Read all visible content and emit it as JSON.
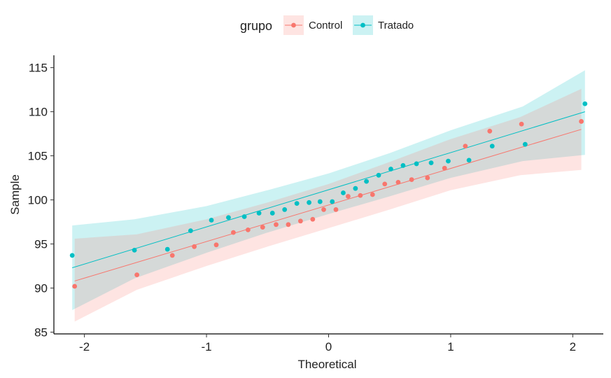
{
  "chart_data": {
    "type": "scatter",
    "subtype": "qq-plot",
    "title": "",
    "xlabel": "Theoretical",
    "ylabel": "Sample",
    "xlim": [
      -2.25,
      2.25
    ],
    "ylim": [
      84.8,
      116.4
    ],
    "xticks": [
      -2,
      -1,
      0,
      1,
      2
    ],
    "yticks": [
      85,
      90,
      95,
      100,
      105,
      110,
      115
    ],
    "grid": false,
    "legend": {
      "title": "grupo",
      "position": "top",
      "entries": [
        "Control",
        "Tratado"
      ]
    },
    "series": [
      {
        "name": "Control",
        "color": "#F8766D",
        "points": [
          [
            -2.08,
            90.2
          ],
          [
            -1.57,
            91.5
          ],
          [
            -1.28,
            93.7
          ],
          [
            -1.1,
            94.7
          ],
          [
            -0.92,
            94.9
          ],
          [
            -0.78,
            96.3
          ],
          [
            -0.66,
            96.6
          ],
          [
            -0.54,
            96.9
          ],
          [
            -0.43,
            97.2
          ],
          [
            -0.33,
            97.2
          ],
          [
            -0.23,
            97.6
          ],
          [
            -0.13,
            97.8
          ],
          [
            -0.04,
            98.9
          ],
          [
            0.06,
            98.9
          ],
          [
            0.16,
            100.4
          ],
          [
            0.26,
            100.5
          ],
          [
            0.36,
            100.6
          ],
          [
            0.46,
            101.8
          ],
          [
            0.57,
            102.0
          ],
          [
            0.68,
            102.3
          ],
          [
            0.81,
            102.5
          ],
          [
            0.95,
            103.6
          ],
          [
            1.12,
            106.1
          ],
          [
            1.32,
            107.8
          ],
          [
            1.58,
            108.6
          ],
          [
            2.07,
            108.9
          ]
        ],
        "line": {
          "x": [
            -2.08,
            2.07
          ],
          "y": [
            90.8,
            108.0
          ]
        },
        "band": {
          "x": [
            -2.08,
            -1.57,
            -1.0,
            -0.5,
            0.0,
            0.5,
            1.0,
            1.57,
            2.07
          ],
          "lower": [
            86.2,
            89.8,
            92.5,
            94.7,
            96.8,
            98.9,
            101.1,
            102.8,
            103.4
          ],
          "upper": [
            95.6,
            96.1,
            97.8,
            99.7,
            101.8,
            104.3,
            106.9,
            109.4,
            112.6
          ]
        }
      },
      {
        "name": "Tratado",
        "color": "#00BFC4",
        "points": [
          [
            -2.1,
            93.7
          ],
          [
            -1.59,
            94.3
          ],
          [
            -1.32,
            94.4
          ],
          [
            -1.13,
            96.5
          ],
          [
            -0.96,
            97.7
          ],
          [
            -0.82,
            98.0
          ],
          [
            -0.69,
            98.1
          ],
          [
            -0.57,
            98.5
          ],
          [
            -0.46,
            98.5
          ],
          [
            -0.36,
            98.9
          ],
          [
            -0.26,
            99.6
          ],
          [
            -0.16,
            99.7
          ],
          [
            -0.07,
            99.8
          ],
          [
            0.03,
            99.8
          ],
          [
            0.12,
            100.8
          ],
          [
            0.22,
            101.3
          ],
          [
            0.31,
            102.1
          ],
          [
            0.41,
            102.8
          ],
          [
            0.51,
            103.5
          ],
          [
            0.61,
            103.9
          ],
          [
            0.72,
            104.1
          ],
          [
            0.84,
            104.2
          ],
          [
            0.98,
            104.4
          ],
          [
            1.15,
            104.5
          ],
          [
            1.34,
            106.1
          ],
          [
            1.61,
            106.3
          ],
          [
            2.1,
            110.9
          ]
        ],
        "line": {
          "x": [
            -2.1,
            2.1
          ],
          "y": [
            92.3,
            110.0
          ]
        },
        "band": {
          "x": [
            -2.1,
            -1.59,
            -1.0,
            -0.5,
            0.0,
            0.5,
            1.0,
            1.59,
            2.1
          ],
          "lower": [
            87.5,
            91.1,
            94.0,
            96.3,
            98.4,
            100.4,
            102.5,
            104.4,
            105.1
          ],
          "upper": [
            97.1,
            97.8,
            99.3,
            101.1,
            103.0,
            105.3,
            107.9,
            110.6,
            114.7
          ]
        }
      }
    ]
  }
}
